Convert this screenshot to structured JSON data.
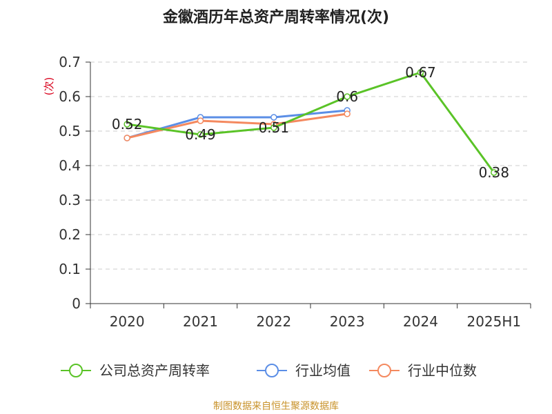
{
  "chart_data": {
    "type": "line",
    "title": "金徽酒历年总资产周转率情况(次)",
    "ylabel": "(次)",
    "categories": [
      "2020",
      "2021",
      "2022",
      "2023",
      "2024",
      "2025H1"
    ],
    "ylim": [
      0,
      0.7
    ],
    "yticks": [
      "0",
      "0.1",
      "0.2",
      "0.3",
      "0.4",
      "0.5",
      "0.6",
      "0.7"
    ],
    "grid": true,
    "legend_position": "bottom",
    "series": [
      {
        "name": "公司总资产周转率",
        "color": "#5ac327",
        "values": [
          0.52,
          0.49,
          0.51,
          0.6,
          0.67,
          0.38
        ],
        "labels": [
          "0.52",
          "0.49",
          "0.51",
          "0.6",
          "0.67",
          "0.38"
        ]
      },
      {
        "name": "行业均值",
        "color": "#5b8ee6",
        "values": [
          0.48,
          0.54,
          0.54,
          0.56,
          null,
          null
        ]
      },
      {
        "name": "行业中位数",
        "color": "#f4895f",
        "values": [
          0.48,
          0.53,
          0.52,
          0.55,
          null,
          null
        ]
      }
    ]
  },
  "source": "制图数据来自恒生聚源数据库"
}
